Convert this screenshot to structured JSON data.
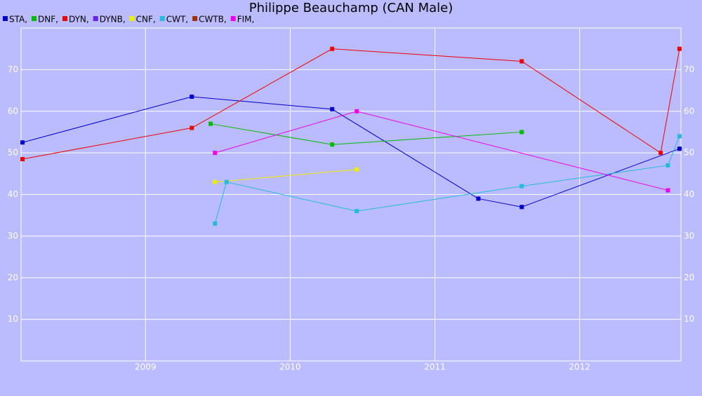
{
  "chart_data": {
    "type": "line",
    "title": "Philippe Beauchamp (CAN Male)",
    "xlim": [
      2008.14,
      2012.7
    ],
    "xticks": [
      2009,
      2010,
      2011,
      2012
    ],
    "ylim": [
      0,
      80
    ],
    "yticks": [
      10,
      20,
      30,
      40,
      50,
      60,
      70
    ],
    "grid": true,
    "series": [
      {
        "name": "STA,",
        "color": "#0000cc",
        "x": [
          2008.15,
          2009.32,
          2010.29,
          2011.3,
          2011.6,
          2012.69
        ],
        "values": [
          52.5,
          63.5,
          60.5,
          39,
          37,
          51
        ]
      },
      {
        "name": "DNF,",
        "color": "#00bb00",
        "x": [
          2009.45,
          2010.29,
          2011.6
        ],
        "values": [
          57,
          52,
          55
        ]
      },
      {
        "name": "DYN,",
        "color": "#ee0000",
        "x": [
          2008.15,
          2009.32,
          2010.29,
          2011.6,
          2012.56,
          2012.69
        ],
        "values": [
          48.5,
          56,
          75,
          72,
          50,
          75
        ]
      },
      {
        "name": "DYNB,",
        "color": "#6622ee",
        "x": [],
        "values": []
      },
      {
        "name": "CNF,",
        "color": "#eeee00",
        "x": [
          2009.48,
          2010.46
        ],
        "values": [
          43,
          46
        ]
      },
      {
        "name": "CWT,",
        "color": "#22bbdd",
        "x": [
          2009.48,
          2009.56,
          2010.46,
          2011.6,
          2012.61,
          2012.69
        ],
        "values": [
          33,
          43,
          36,
          42,
          47,
          54
        ]
      },
      {
        "name": "CWTB,",
        "color": "#993300",
        "x": [],
        "values": []
      },
      {
        "name": "FIM,",
        "color": "#ee00ee",
        "x": [
          2009.48,
          2010.46,
          2012.61
        ],
        "values": [
          50,
          60,
          41
        ]
      }
    ]
  }
}
